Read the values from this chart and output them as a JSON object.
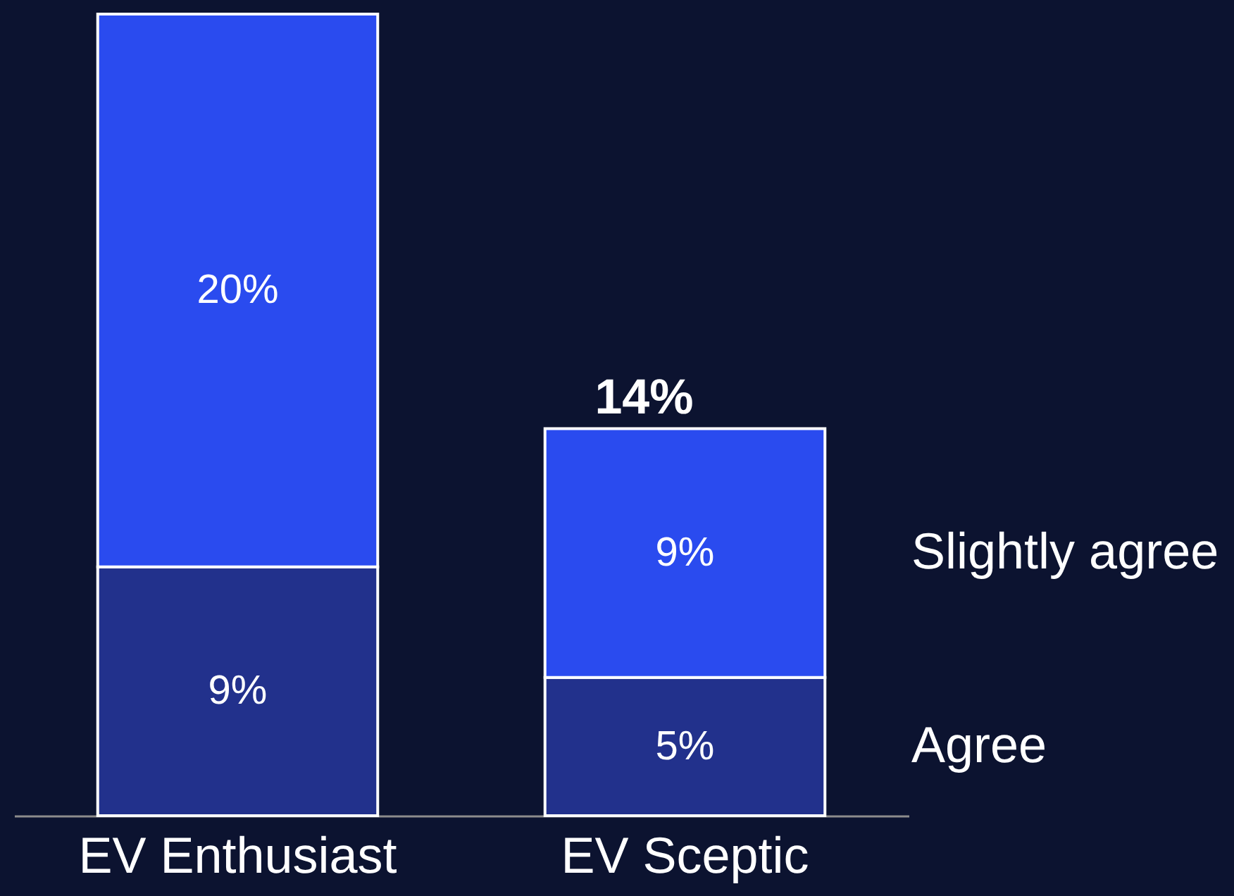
{
  "chart_data": {
    "type": "bar",
    "categories": [
      "EV Enthusiast",
      "EV Sceptic"
    ],
    "series": [
      {
        "name": "Agree",
        "color": "#22318c",
        "values": [
          9,
          5
        ],
        "value_labels": [
          "9%",
          "5%"
        ]
      },
      {
        "name": "Slightly agree",
        "color": "#2a4bef",
        "values": [
          20,
          9
        ],
        "value_labels": [
          "20%",
          "9%"
        ]
      }
    ],
    "stacked": true,
    "totals": [
      null,
      "14%"
    ],
    "legend": "right"
  }
}
